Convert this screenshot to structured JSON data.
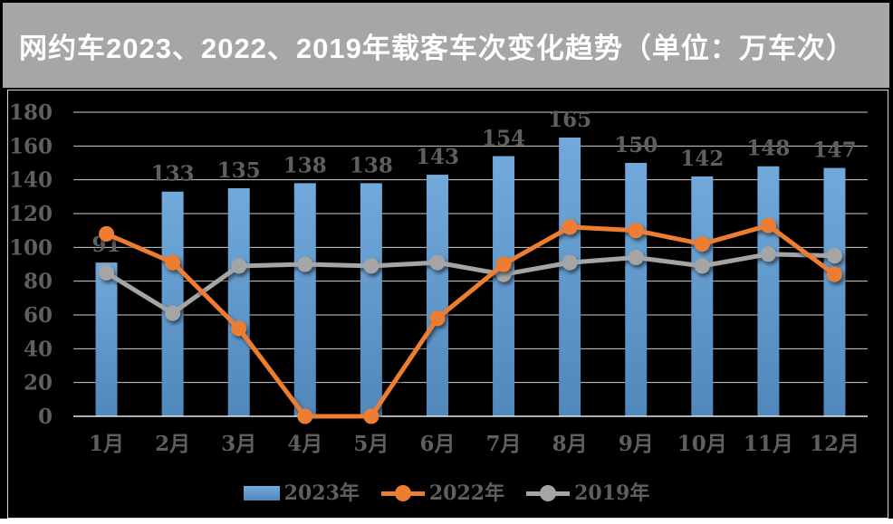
{
  "chart_data": {
    "type": "combo",
    "title": "网约车2023、2022、2019年载客车次变化趋势（单位：万车次）",
    "categories": [
      "1月",
      "2月",
      "3月",
      "4月",
      "5月",
      "6月",
      "7月",
      "8月",
      "9月",
      "10月",
      "11月",
      "12月"
    ],
    "series": [
      {
        "name": "2023年",
        "type": "bar",
        "color": "#5B9BD5",
        "values": [
          91,
          133,
          135,
          138,
          138,
          143,
          154,
          165,
          150,
          142,
          148,
          147
        ],
        "data_labels": true
      },
      {
        "name": "2022年",
        "type": "line",
        "color": "#ED7D31",
        "values": [
          108,
          91,
          52,
          0,
          0,
          58,
          90,
          112,
          110,
          102,
          113,
          84
        ],
        "data_labels": false
      },
      {
        "name": "2019年",
        "type": "line",
        "color": "#A5A5A5",
        "values": [
          85,
          61,
          89,
          90,
          89,
          91,
          84,
          91,
          94,
          89,
          96,
          95
        ],
        "data_labels": false
      }
    ],
    "y_axis": {
      "min": 0,
      "max": 180,
      "tick_step": 20,
      "ticks": [
        180,
        160,
        140,
        120,
        100,
        80,
        60,
        40,
        20,
        0
      ]
    },
    "grid": true,
    "legend_position": "bottom",
    "plot_background": "#000000"
  },
  "colors": {
    "title_band": "#A6A6A6",
    "title_text": "#FFFFFF",
    "plot_bg": "#000000",
    "gridline": "#D9D9D9",
    "axis_line": "#E8E8E8",
    "label": "#5F5F5F"
  }
}
